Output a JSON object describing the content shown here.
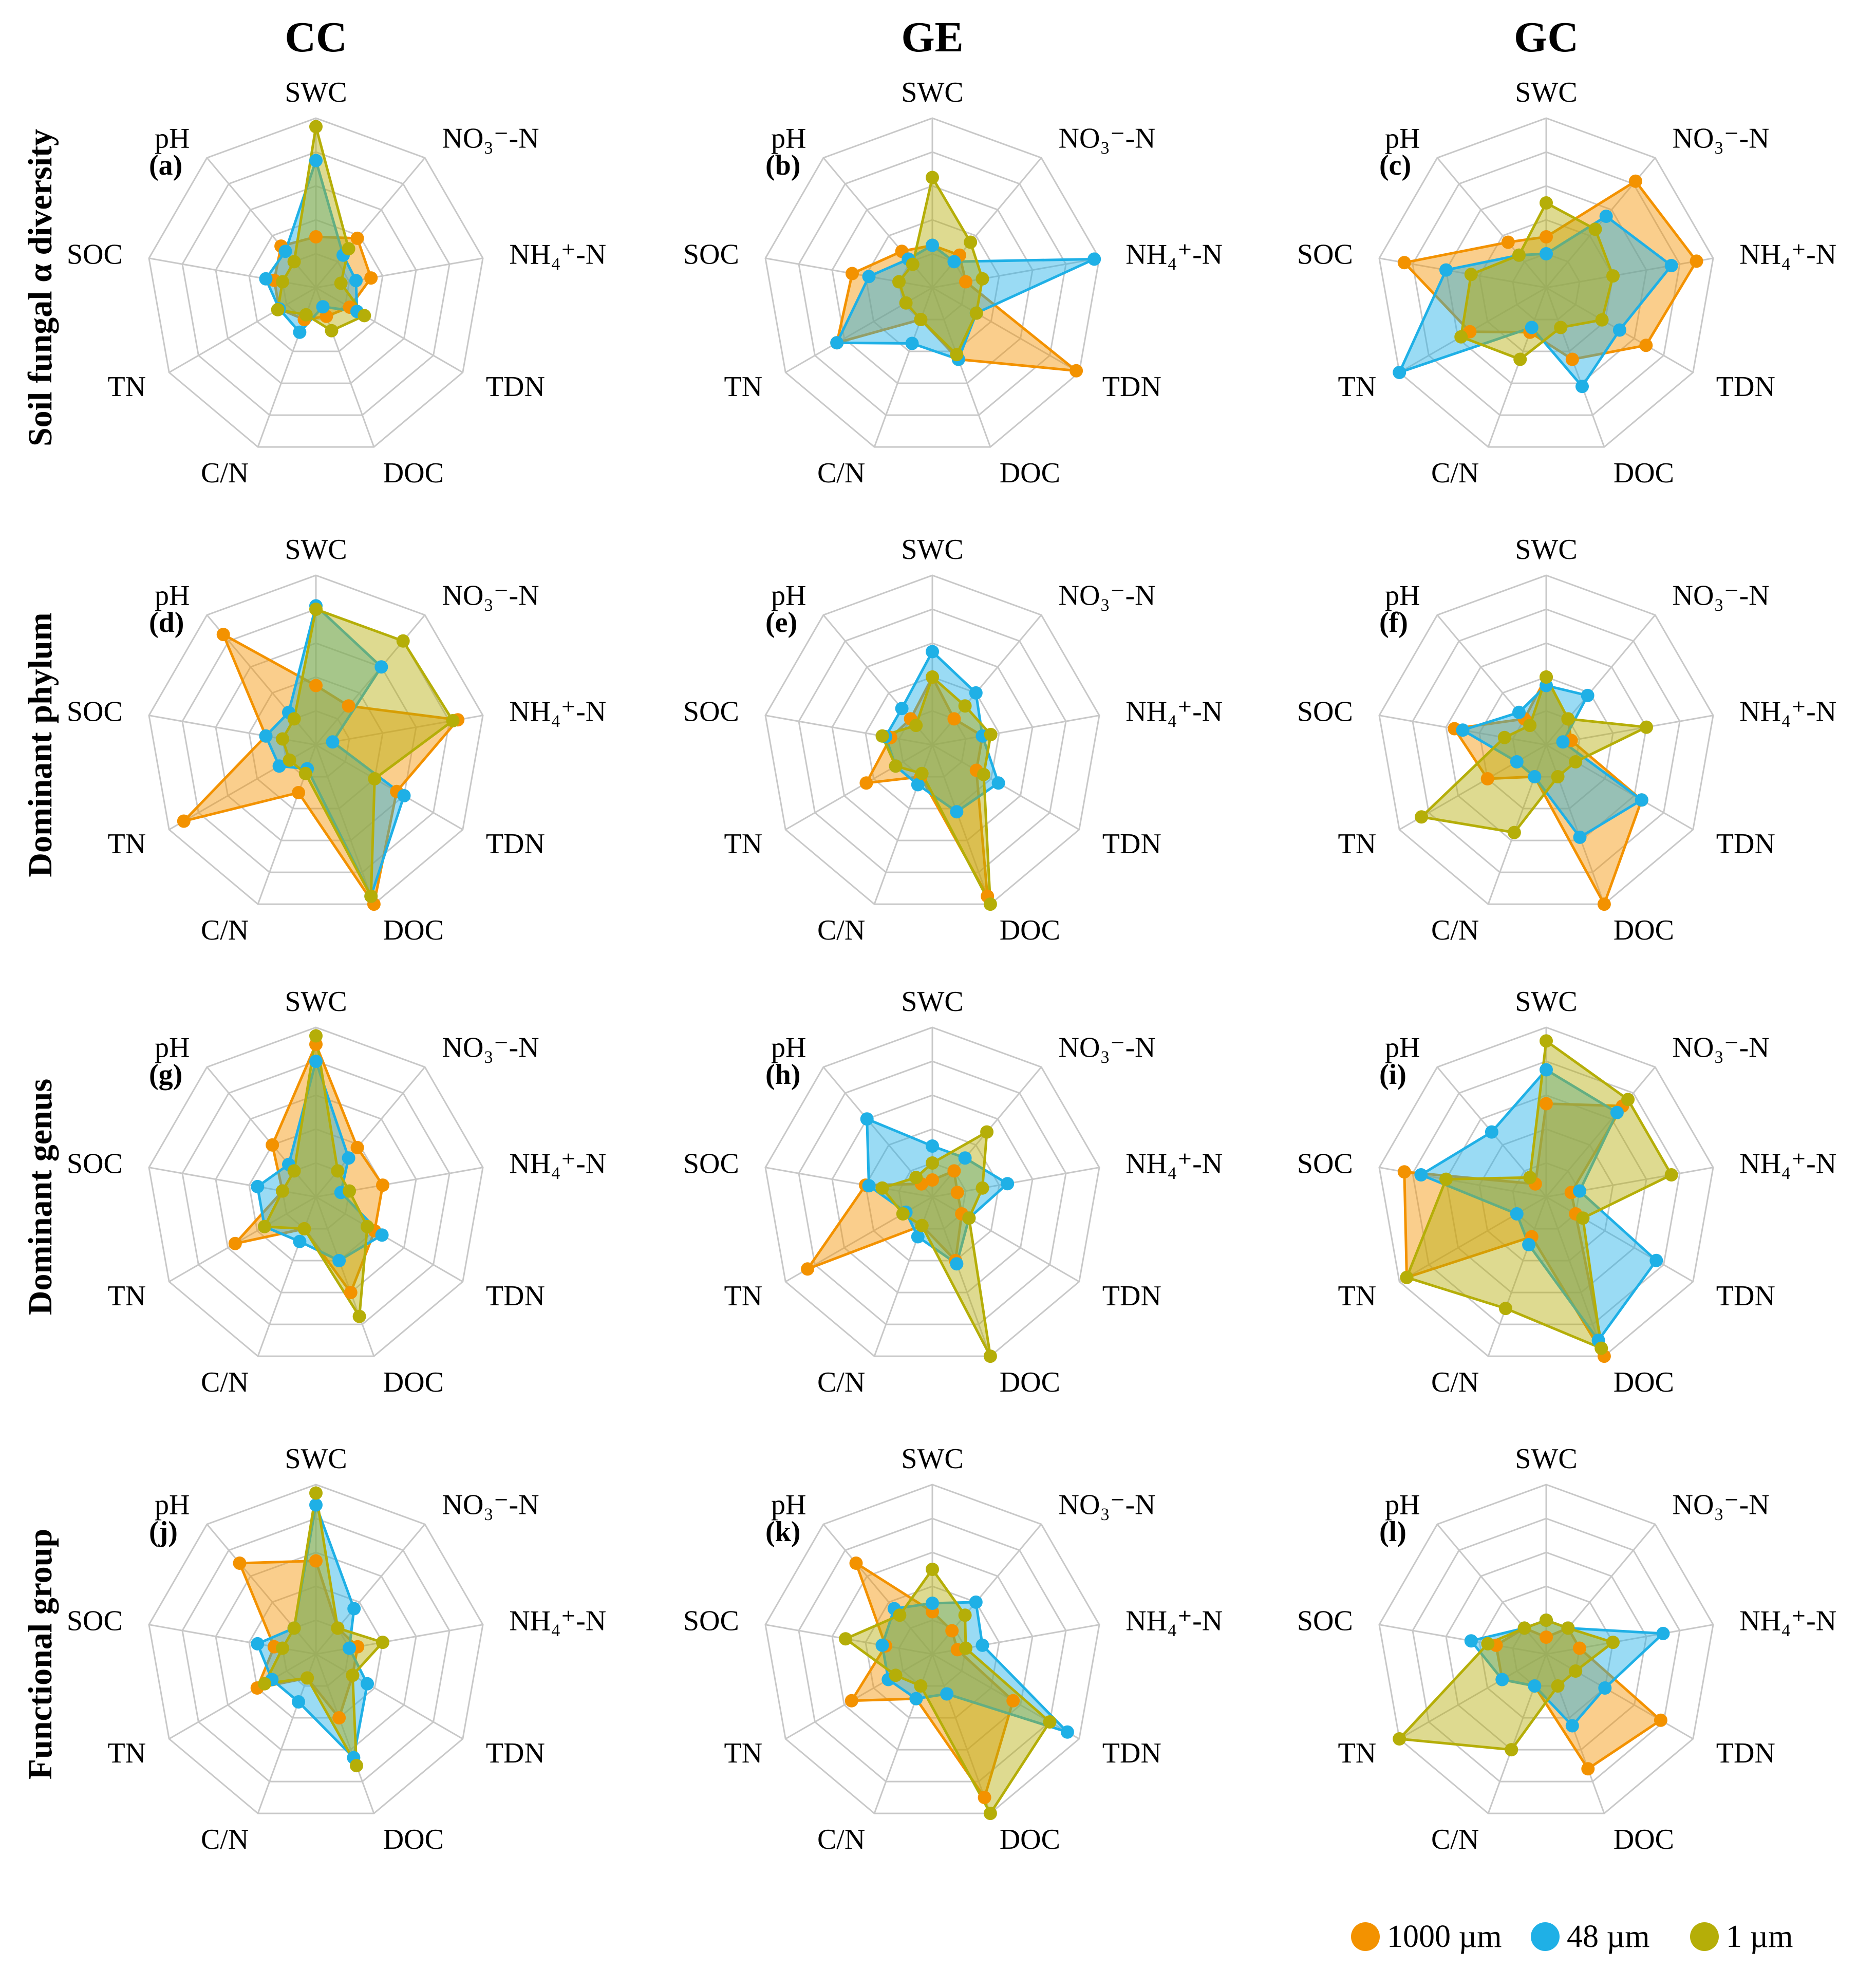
{
  "colors": {
    "1000 µm": "#F39200",
    "48 µm": "#1FB0E6",
    "1 µm": "#B5AE08"
  },
  "chart_data": {
    "type": "radar",
    "title": "",
    "axes": [
      "SWC",
      "NO₃⁻-N",
      "NH₄⁺-N",
      "TDN",
      "DOC",
      "C/N",
      "TN",
      "SOC",
      "pH"
    ],
    "scale": [
      0,
      1
    ],
    "grid_levels": 5,
    "columns": [
      "CC",
      "GE",
      "GC"
    ],
    "rows": [
      "Soil fungal α diversity",
      "Dominant phylum",
      "Dominant genus",
      "Functional group"
    ],
    "series_names": [
      "1000 µm",
      "48 µm",
      "1 µm"
    ],
    "legend": [
      "1000 µm",
      "48 µm",
      "1 µm"
    ],
    "legend_position": "bottom-right",
    "panels": [
      {
        "id": "(a)",
        "row": 0,
        "col": 0,
        "series": [
          {
            "name": "1000 µm",
            "values": [
              0.3,
              0.38,
              0.33,
              0.23,
              0.18,
              0.2,
              0.25,
              0.25,
              0.32
            ]
          },
          {
            "name": "48 µm",
            "values": [
              0.75,
              0.25,
              0.24,
              0.28,
              0.12,
              0.28,
              0.25,
              0.3,
              0.28
            ]
          },
          {
            "name": "1 µm",
            "values": [
              0.95,
              0.3,
              0.15,
              0.33,
              0.27,
              0.17,
              0.26,
              0.2,
              0.2
            ]
          }
        ]
      },
      {
        "id": "(b)",
        "row": 0,
        "col": 1,
        "series": [
          {
            "name": "1000 µm",
            "values": [
              0.25,
              0.25,
              0.2,
              0.98,
              0.45,
              0.2,
              0.65,
              0.48,
              0.28
            ]
          },
          {
            "name": "48 µm",
            "values": [
              0.25,
              0.2,
              0.97,
              0.3,
              0.45,
              0.35,
              0.65,
              0.38,
              0.22
            ]
          },
          {
            "name": "1 µm",
            "values": [
              0.65,
              0.35,
              0.3,
              0.3,
              0.42,
              0.2,
              0.18,
              0.2,
              0.18
            ]
          }
        ]
      },
      {
        "id": "(c)",
        "row": 0,
        "col": 2,
        "series": [
          {
            "name": "1000 µm",
            "values": [
              0.3,
              0.82,
              0.9,
              0.68,
              0.45,
              0.28,
              0.52,
              0.85,
              0.35
            ]
          },
          {
            "name": "48 µm",
            "values": [
              0.2,
              0.55,
              0.75,
              0.5,
              0.62,
              0.25,
              1.0,
              0.6,
              0.25
            ]
          },
          {
            "name": "1 µm",
            "values": [
              0.5,
              0.45,
              0.4,
              0.38,
              0.25,
              0.45,
              0.58,
              0.45,
              0.25
            ]
          }
        ]
      },
      {
        "id": "(d)",
        "row": 1,
        "col": 0,
        "series": [
          {
            "name": "1000 µm",
            "values": [
              0.35,
              0.3,
              0.85,
              0.55,
              1.0,
              0.3,
              0.9,
              0.3,
              0.85
            ]
          },
          {
            "name": "48 µm",
            "values": [
              0.82,
              0.6,
              0.1,
              0.6,
              0.95,
              0.15,
              0.25,
              0.3,
              0.25
            ]
          },
          {
            "name": "1 µm",
            "values": [
              0.8,
              0.8,
              0.82,
              0.4,
              0.95,
              0.18,
              0.18,
              0.2,
              0.2
            ]
          }
        ]
      },
      {
        "id": "(e)",
        "row": 1,
        "col": 1,
        "series": [
          {
            "name": "1000 µm",
            "values": [
              0.4,
              0.2,
              0.3,
              0.3,
              0.95,
              0.2,
              0.45,
              0.25,
              0.2
            ]
          },
          {
            "name": "48 µm",
            "values": [
              0.55,
              0.4,
              0.3,
              0.45,
              0.42,
              0.25,
              0.25,
              0.28,
              0.28
            ]
          },
          {
            "name": "1 µm",
            "values": [
              0.4,
              0.3,
              0.35,
              0.35,
              1.0,
              0.18,
              0.25,
              0.3,
              0.15
            ]
          }
        ]
      },
      {
        "id": "(f)",
        "row": 1,
        "col": 2,
        "series": [
          {
            "name": "1000 µm",
            "values": [
              0.4,
              0.2,
              0.15,
              0.65,
              1.0,
              0.2,
              0.4,
              0.55,
              0.2
            ]
          },
          {
            "name": "48 µm",
            "values": [
              0.35,
              0.38,
              0.1,
              0.65,
              0.58,
              0.2,
              0.2,
              0.5,
              0.25
            ]
          },
          {
            "name": "1 µm",
            "values": [
              0.4,
              0.2,
              0.6,
              0.2,
              0.2,
              0.55,
              0.85,
              0.25,
              0.15
            ]
          }
        ]
      },
      {
        "id": "(g)",
        "row": 2,
        "col": 0,
        "series": [
          {
            "name": "1000 µm",
            "values": [
              0.9,
              0.38,
              0.4,
              0.4,
              0.6,
              0.2,
              0.55,
              0.2,
              0.4
            ]
          },
          {
            "name": "48 µm",
            "values": [
              0.8,
              0.3,
              0.15,
              0.45,
              0.4,
              0.28,
              0.35,
              0.35,
              0.25
            ]
          },
          {
            "name": "1 µm",
            "values": [
              0.95,
              0.2,
              0.2,
              0.35,
              0.75,
              0.2,
              0.35,
              0.2,
              0.2
            ]
          }
        ]
      },
      {
        "id": "(h)",
        "row": 2,
        "col": 1,
        "series": [
          {
            "name": "1000 µm",
            "values": [
              0.1,
              0.2,
              0.15,
              0.2,
              0.4,
              0.18,
              0.85,
              0.4,
              0.1
            ]
          },
          {
            "name": "48 µm",
            "values": [
              0.3,
              0.3,
              0.45,
              0.25,
              0.42,
              0.25,
              0.18,
              0.38,
              0.6
            ]
          },
          {
            "name": "1 µm",
            "values": [
              0.2,
              0.5,
              0.3,
              0.25,
              1.0,
              0.18,
              0.2,
              0.3,
              0.15
            ]
          }
        ]
      },
      {
        "id": "(i)",
        "row": 2,
        "col": 2,
        "series": [
          {
            "name": "1000 µm",
            "values": [
              0.55,
              0.7,
              0.15,
              0.2,
              1.0,
              0.25,
              0.95,
              0.85,
              0.1
            ]
          },
          {
            "name": "48 µm",
            "values": [
              0.75,
              0.65,
              0.2,
              0.75,
              0.9,
              0.3,
              0.2,
              0.75,
              0.5
            ]
          },
          {
            "name": "1 µm",
            "values": [
              0.92,
              0.75,
              0.75,
              0.25,
              0.95,
              0.7,
              0.95,
              0.6,
              0.15
            ]
          }
        ]
      },
      {
        "id": "(j)",
        "row": 3,
        "col": 0,
        "series": [
          {
            "name": "1000 µm",
            "values": [
              0.55,
              0.2,
              0.25,
              0.25,
              0.4,
              0.15,
              0.4,
              0.25,
              0.7
            ]
          },
          {
            "name": "48 µm",
            "values": [
              0.88,
              0.35,
              0.2,
              0.35,
              0.65,
              0.3,
              0.3,
              0.35,
              0.2
            ]
          },
          {
            "name": "1 µm",
            "values": [
              0.95,
              0.2,
              0.4,
              0.25,
              0.7,
              0.15,
              0.35,
              0.2,
              0.2
            ]
          }
        ]
      },
      {
        "id": "(k)",
        "row": 3,
        "col": 1,
        "series": [
          {
            "name": "1000 µm",
            "values": [
              0.25,
              0.18,
              0.15,
              0.55,
              0.9,
              0.28,
              0.55,
              0.28,
              0.7
            ]
          },
          {
            "name": "48 µm",
            "values": [
              0.3,
              0.4,
              0.3,
              0.92,
              0.25,
              0.28,
              0.3,
              0.3,
              0.35
            ]
          },
          {
            "name": "1 µm",
            "values": [
              0.5,
              0.3,
              0.2,
              0.8,
              1.0,
              0.2,
              0.25,
              0.52,
              0.3
            ]
          }
        ]
      },
      {
        "id": "(l)",
        "row": 3,
        "col": 2,
        "series": [
          {
            "name": "1000 µm",
            "values": [
              0.1,
              0.2,
              0.2,
              0.78,
              0.72,
              0.2,
              0.3,
              0.3,
              0.2
            ]
          },
          {
            "name": "48 µm",
            "values": [
              0.2,
              0.2,
              0.7,
              0.4,
              0.45,
              0.2,
              0.3,
              0.45,
              0.2
            ]
          },
          {
            "name": "1 µm",
            "values": [
              0.2,
              0.2,
              0.4,
              0.2,
              0.2,
              0.6,
              1.0,
              0.35,
              0.2
            ]
          }
        ]
      }
    ]
  }
}
